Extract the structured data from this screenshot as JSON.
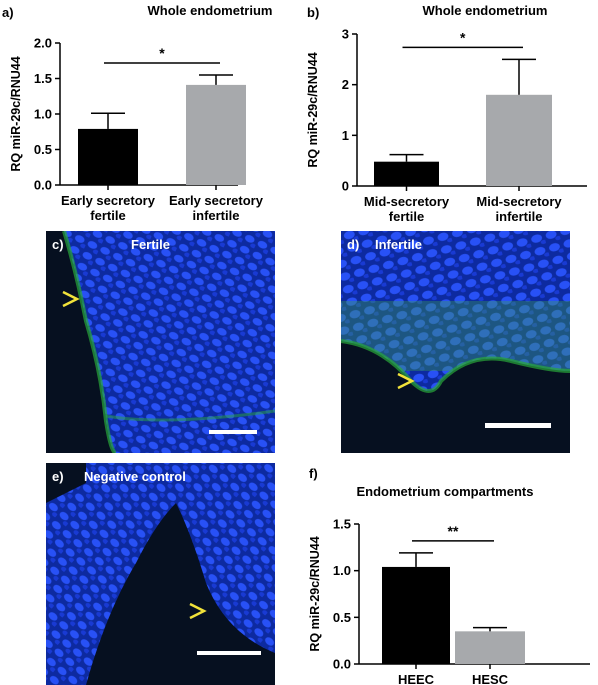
{
  "colors": {
    "fertile_bar": "#000000",
    "infertile_bar": "#a7a9ac",
    "nucleus": "#1c3bd8",
    "stroma_dark": "#061020",
    "fiber": "#2aa83a",
    "arrow": "#f1e23a"
  },
  "chart_data": [
    {
      "panel": "a)",
      "type": "bar",
      "title": "Whole endometrium",
      "ylabel": "RQ miR-29c/RNU44",
      "ylim": [
        0,
        2.0
      ],
      "yticks": [
        "0.0",
        "0.5",
        "1.0",
        "1.5",
        "2.0"
      ],
      "categories": [
        "Early secretory fertile",
        "Early secretory infertile"
      ],
      "category_lines": [
        [
          "Early secretory",
          "fertile"
        ],
        [
          "Early secretory",
          "infertile"
        ]
      ],
      "values": [
        0.79,
        1.41
      ],
      "errors": [
        0.22,
        0.14
      ],
      "significance": "*"
    },
    {
      "panel": "b)",
      "type": "bar",
      "title": "Whole endometrium",
      "ylabel": "RQ miR-29c/RNU44",
      "ylim": [
        0,
        3
      ],
      "yticks": [
        "0",
        "1",
        "2",
        "3"
      ],
      "categories": [
        "Mid-secretory fertile",
        "Mid-secretory infertile"
      ],
      "category_lines": [
        [
          "Mid-secretory",
          "fertile"
        ],
        [
          "Mid-secretory",
          "infertile"
        ]
      ],
      "values": [
        0.48,
        1.8
      ],
      "errors": [
        0.14,
        0.7
      ],
      "significance": "*"
    },
    {
      "panel": "f)",
      "type": "bar",
      "title": "Endometrium compartments",
      "ylabel": "RQ miR-29c/RNU44",
      "ylim": [
        0,
        1.5
      ],
      "yticks": [
        "0.0",
        "0.5",
        "1.0",
        "1.5"
      ],
      "categories": [
        "HEEC",
        "HESC"
      ],
      "category_lines": [
        [
          "HEEC"
        ],
        [
          "HESC"
        ]
      ],
      "values": [
        1.04,
        0.35
      ],
      "errors": [
        0.15,
        0.04
      ],
      "significance": "**"
    }
  ],
  "micrographs": [
    {
      "panel": "c)",
      "label": "Fertile"
    },
    {
      "panel": "d)",
      "label": "Infertile"
    },
    {
      "panel": "e)",
      "label": "Negative control"
    }
  ]
}
